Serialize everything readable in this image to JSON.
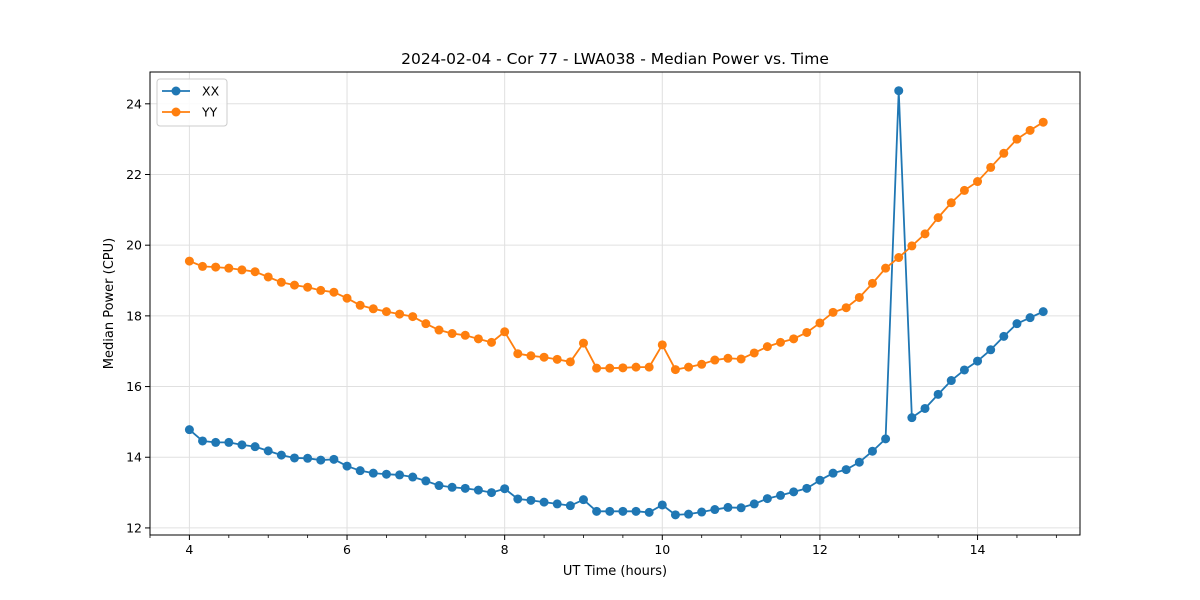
{
  "chart_data": {
    "type": "line",
    "title": "2024-02-04 - Cor 77 - LWA038 - Median Power vs. Time",
    "xlabel": "UT Time (hours)",
    "ylabel": "Median Power (CPU)",
    "xlim": [
      3.5,
      15.3
    ],
    "ylim": [
      11.8,
      24.9
    ],
    "xticks": [
      4,
      6,
      8,
      10,
      12,
      14
    ],
    "xtick_labels": [
      "4",
      "6",
      "8",
      "10",
      "12",
      "14"
    ],
    "xminor_step": 0.5,
    "yticks": [
      12,
      14,
      16,
      18,
      20,
      22,
      24
    ],
    "ytick_labels": [
      "12",
      "14",
      "16",
      "18",
      "20",
      "22",
      "24"
    ],
    "grid": true,
    "legend_position": "upper-left",
    "x": [
      4.0,
      4.1667,
      4.3333,
      4.5,
      4.6667,
      4.8333,
      5.0,
      5.1667,
      5.3333,
      5.5,
      5.6667,
      5.8333,
      6.0,
      6.1667,
      6.3333,
      6.5,
      6.6667,
      6.8333,
      7.0,
      7.1667,
      7.3333,
      7.5,
      7.6667,
      7.8333,
      8.0,
      8.1667,
      8.3333,
      8.5,
      8.6667,
      8.8333,
      9.0,
      9.1667,
      9.3333,
      9.5,
      9.6667,
      9.8333,
      10.0,
      10.1667,
      10.3333,
      10.5,
      10.6667,
      10.8333,
      11.0,
      11.1667,
      11.3333,
      11.5,
      11.6667,
      11.8333,
      12.0,
      12.1667,
      12.3333,
      12.5,
      12.6667,
      12.8333,
      13.0,
      13.1667,
      13.3333,
      13.5,
      13.6667,
      13.8333,
      14.0,
      14.1667,
      14.3333,
      14.5,
      14.6667,
      14.8333
    ],
    "series": [
      {
        "name": "XX",
        "color": "#1f77b4",
        "values": [
          14.78,
          14.46,
          14.42,
          14.42,
          14.35,
          14.3,
          14.18,
          14.06,
          13.98,
          13.97,
          13.92,
          13.94,
          13.75,
          13.62,
          13.55,
          13.52,
          13.5,
          13.44,
          13.33,
          13.2,
          13.15,
          13.12,
          13.07,
          13.0,
          13.11,
          12.82,
          12.78,
          12.73,
          12.68,
          12.63,
          12.8,
          12.47,
          12.47,
          12.47,
          12.47,
          12.44,
          12.65,
          12.37,
          12.39,
          12.45,
          12.52,
          12.58,
          12.57,
          12.68,
          12.83,
          12.92,
          13.02,
          13.12,
          13.35,
          13.55,
          13.65,
          13.86,
          14.17,
          14.52,
          24.37,
          15.12,
          15.38,
          15.78,
          16.17,
          16.47,
          16.72,
          17.04,
          17.42,
          17.78,
          17.95,
          18.12
        ]
      },
      {
        "name": "YY",
        "color": "#ff7f0e",
        "values": [
          19.55,
          19.4,
          19.38,
          19.35,
          19.3,
          19.25,
          19.1,
          18.95,
          18.87,
          18.81,
          18.72,
          18.67,
          18.5,
          18.3,
          18.2,
          18.12,
          18.05,
          17.98,
          17.78,
          17.6,
          17.5,
          17.45,
          17.35,
          17.25,
          17.55,
          16.93,
          16.87,
          16.83,
          16.77,
          16.7,
          17.23,
          16.52,
          16.52,
          16.53,
          16.55,
          16.55,
          17.18,
          16.48,
          16.55,
          16.63,
          16.75,
          16.8,
          16.78,
          16.95,
          17.13,
          17.25,
          17.35,
          17.53,
          17.8,
          18.1,
          18.23,
          18.52,
          18.92,
          19.35,
          19.65,
          19.98,
          20.32,
          20.78,
          21.2,
          21.55,
          21.8,
          22.2,
          22.6,
          23.0,
          23.25,
          23.48
        ]
      }
    ]
  }
}
